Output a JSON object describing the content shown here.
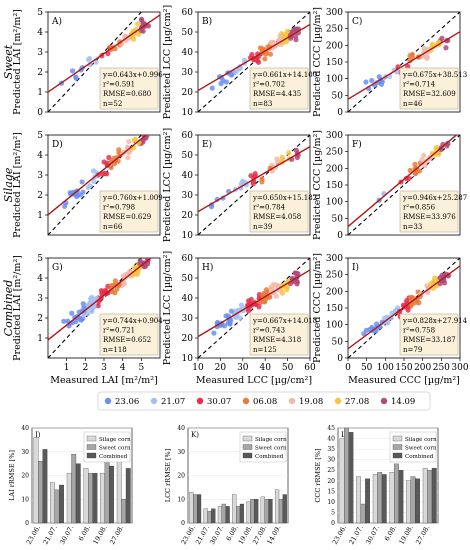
{
  "figure": {
    "row_labels": [
      "Sweet",
      "Silage",
      "Combined"
    ],
    "date_legend": [
      {
        "label": "23.06",
        "color": "#6a8ff0"
      },
      {
        "label": "21.07",
        "color": "#a5bff5"
      },
      {
        "label": "30.07",
        "color": "#e8304e"
      },
      {
        "label": "06.08",
        "color": "#ea7a3c"
      },
      {
        "label": "19.08",
        "color": "#f5b8a8"
      },
      {
        "label": "27.08",
        "color": "#f5c542"
      },
      {
        "label": "14.09",
        "color": "#b04a7a"
      }
    ]
  },
  "chart_data": [
    {
      "type": "scatter",
      "panel": "A)",
      "row": 0,
      "col": 0,
      "ylabel": "Predicted LAI [m²/m²]",
      "xlabel": "",
      "xlim": [
        0,
        6
      ],
      "ylim": [
        0,
        5
      ],
      "xticks": [],
      "yticks": [
        0,
        1,
        2,
        3,
        4,
        5
      ],
      "fit": {
        "slope": 0.643,
        "intercept": 0.996
      },
      "stats": [
        "y=0.643x+0.996",
        "r²=0.591",
        "RMSE=0.680",
        "n=52"
      ],
      "stats_pos": "bottom-right"
    },
    {
      "type": "scatter",
      "panel": "B)",
      "row": 0,
      "col": 1,
      "ylabel": "Predicted LCC [µg/cm²]",
      "xlabel": "",
      "xlim": [
        10,
        60
      ],
      "ylim": [
        10,
        60
      ],
      "xticks": [],
      "yticks": [
        10,
        20,
        30,
        40,
        50,
        60
      ],
      "fit": {
        "slope": 0.661,
        "intercept": 14.1
      },
      "stats": [
        "y=0.661x+14.100",
        "r²=0.702",
        "RMSE=4.435",
        "n=83"
      ],
      "stats_pos": "bottom-right"
    },
    {
      "type": "scatter",
      "panel": "C)",
      "row": 0,
      "col": 2,
      "ylabel": "Predicted CCC [µg/m²]",
      "xlabel": "",
      "xlim": [
        0,
        300
      ],
      "ylim": [
        0,
        300
      ],
      "xticks": [],
      "yticks": [
        0,
        50,
        100,
        150,
        200,
        250,
        300
      ],
      "fit": {
        "slope": 0.675,
        "intercept": 38.513
      },
      "stats": [
        "y=0.675x+38.513",
        "r²=0.714",
        "RMSE=32.609",
        "n=46"
      ],
      "stats_pos": "bottom-right"
    },
    {
      "type": "scatter",
      "panel": "D)",
      "row": 1,
      "col": 0,
      "ylabel": "Predicted LAI [m²/m²]",
      "xlabel": "",
      "xlim": [
        0,
        6
      ],
      "ylim": [
        0,
        5
      ],
      "xticks": [],
      "yticks": [
        1,
        2,
        3,
        4,
        5
      ],
      "fit": {
        "slope": 0.76,
        "intercept": 1.009
      },
      "stats": [
        "y=0.760x+1.009",
        "r²=0.798",
        "RMSE=0.629",
        "n=66"
      ],
      "stats_pos": "bottom-right"
    },
    {
      "type": "scatter",
      "panel": "E)",
      "row": 1,
      "col": 1,
      "ylabel": "Predicted LCC [µg/cm²]",
      "xlabel": "",
      "xlim": [
        10,
        60
      ],
      "ylim": [
        10,
        60
      ],
      "xticks": [],
      "yticks": [
        10,
        20,
        30,
        40,
        50,
        60
      ],
      "fit": {
        "slope": 0.65,
        "intercept": 15.182
      },
      "stats": [
        "y=0.650x+15.182",
        "r²=0.784",
        "RMSE=4.058",
        "n=39"
      ],
      "stats_pos": "bottom-right"
    },
    {
      "type": "scatter",
      "panel": "F)",
      "row": 1,
      "col": 2,
      "ylabel": "Predicted CCC [µg/m²]",
      "xlabel": "",
      "xlim": [
        0,
        300
      ],
      "ylim": [
        0,
        300
      ],
      "xticks": [],
      "yticks": [
        0,
        50,
        100,
        150,
        200,
        250,
        300
      ],
      "fit": {
        "slope": 0.946,
        "intercept": 25.287
      },
      "stats": [
        "y=0.946x+25.287",
        "r²=0.856",
        "RMSE=33.976",
        "n=33"
      ],
      "stats_pos": "bottom-right"
    },
    {
      "type": "scatter",
      "panel": "G)",
      "row": 2,
      "col": 0,
      "ylabel": "Predicted LAI [m²/m²]",
      "xlabel": "Measured LAI [m²/m²]",
      "xlim": [
        0,
        6
      ],
      "ylim": [
        0,
        5
      ],
      "xticks": [
        1,
        2,
        3,
        4,
        5
      ],
      "yticks": [
        1,
        2,
        3,
        4,
        5
      ],
      "fit": {
        "slope": 0.744,
        "intercept": 0.904
      },
      "stats": [
        "y=0.744x+0.904",
        "r²=0.721",
        "RMSE=0.652",
        "n=118"
      ],
      "stats_pos": "bottom-right"
    },
    {
      "type": "scatter",
      "panel": "H)",
      "row": 2,
      "col": 1,
      "ylabel": "Predicted LCC [µg/cm²]",
      "xlabel": "Measured LCC [µg/cm²]",
      "xlim": [
        10,
        60
      ],
      "ylim": [
        10,
        60
      ],
      "xticks": [
        10,
        20,
        30,
        40,
        50,
        60
      ],
      "yticks": [
        10,
        20,
        30,
        40,
        50,
        60
      ],
      "fit": {
        "slope": 0.667,
        "intercept": 14.018
      },
      "stats": [
        "y=0.667x+14.018",
        "r²=0.743",
        "RMSE=4.318",
        "n=125"
      ],
      "stats_pos": "bottom-right"
    },
    {
      "type": "scatter",
      "panel": "I)",
      "row": 2,
      "col": 2,
      "ylabel": "Predicted CCC [µg/m²]",
      "xlabel": "Measured CCC [µg/m²]",
      "xlim": [
        0,
        300
      ],
      "ylim": [
        0,
        300
      ],
      "xticks": [
        0,
        50,
        100,
        150,
        200,
        250,
        300
      ],
      "yticks": [
        0,
        50,
        100,
        150,
        200,
        250,
        300
      ],
      "fit": {
        "slope": 0.828,
        "intercept": 27.914
      },
      "stats": [
        "y=0.828x+27.914",
        "r²=0.758",
        "RMSE=33.187",
        "n=79"
      ],
      "stats_pos": "bottom-right"
    },
    {
      "type": "bar",
      "panel": "J)",
      "ylabel": "LAI rRMSE [%]",
      "ylim": [
        0,
        40
      ],
      "yticks": [
        0,
        10,
        20,
        30,
        40
      ],
      "categories": [
        "23.06.",
        "21.07.",
        "30.07.",
        "6.08.",
        "19.08.",
        "27.08."
      ],
      "series": [
        {
          "name": "Silage corn",
          "color": "#d9d9d9",
          "values": [
            36,
            17,
            21,
            23,
            21,
            31
          ]
        },
        {
          "name": "Sweet corn",
          "color": "#a6a6a6",
          "values": [
            26,
            14,
            29,
            21,
            26,
            10
          ]
        },
        {
          "name": "Combined",
          "color": "#595959",
          "values": [
            31,
            16,
            25,
            21,
            24,
            23
          ]
        }
      ]
    },
    {
      "type": "bar",
      "panel": "K)",
      "ylabel": "LCC rRMSE [%]",
      "ylim": [
        0,
        40
      ],
      "yticks": [
        0,
        10,
        20,
        30,
        40
      ],
      "categories": [
        "23.06.",
        "21.07.",
        "30.07.",
        "6.08.",
        "19.08.",
        "27.08.",
        "14.09."
      ],
      "series": [
        {
          "name": "Silage corn",
          "color": "#d9d9d9",
          "values": [
            13,
            6,
            7,
            12,
            9,
            11,
            14
          ]
        },
        {
          "name": "Sweet corn",
          "color": "#a6a6a6",
          "values": [
            12,
            5,
            8,
            7,
            10,
            10,
            10
          ]
        },
        {
          "name": "Combined",
          "color": "#595959",
          "values": [
            12,
            6,
            7,
            8,
            10,
            10,
            12
          ]
        }
      ]
    },
    {
      "type": "bar",
      "panel": "L)",
      "ylabel": "CCC rRMSE [%]",
      "ylim": [
        0,
        45
      ],
      "yticks": [
        0,
        5,
        10,
        15,
        20,
        25,
        30,
        35,
        40,
        45
      ],
      "categories": [
        "23.06.",
        "21.07.",
        "30.07.",
        "6.08.",
        "19.08.",
        "27.08."
      ],
      "series": [
        {
          "name": "Silage corn",
          "color": "#d9d9d9",
          "values": [
            40,
            22,
            23,
            24,
            20,
            26
          ]
        },
        {
          "name": "Sweet corn",
          "color": "#a6a6a6",
          "values": [
            45,
            9,
            24,
            28,
            22,
            25
          ]
        },
        {
          "name": "Combined",
          "color": "#595959",
          "values": [
            43,
            21,
            23,
            25,
            21,
            26
          ]
        }
      ]
    }
  ]
}
